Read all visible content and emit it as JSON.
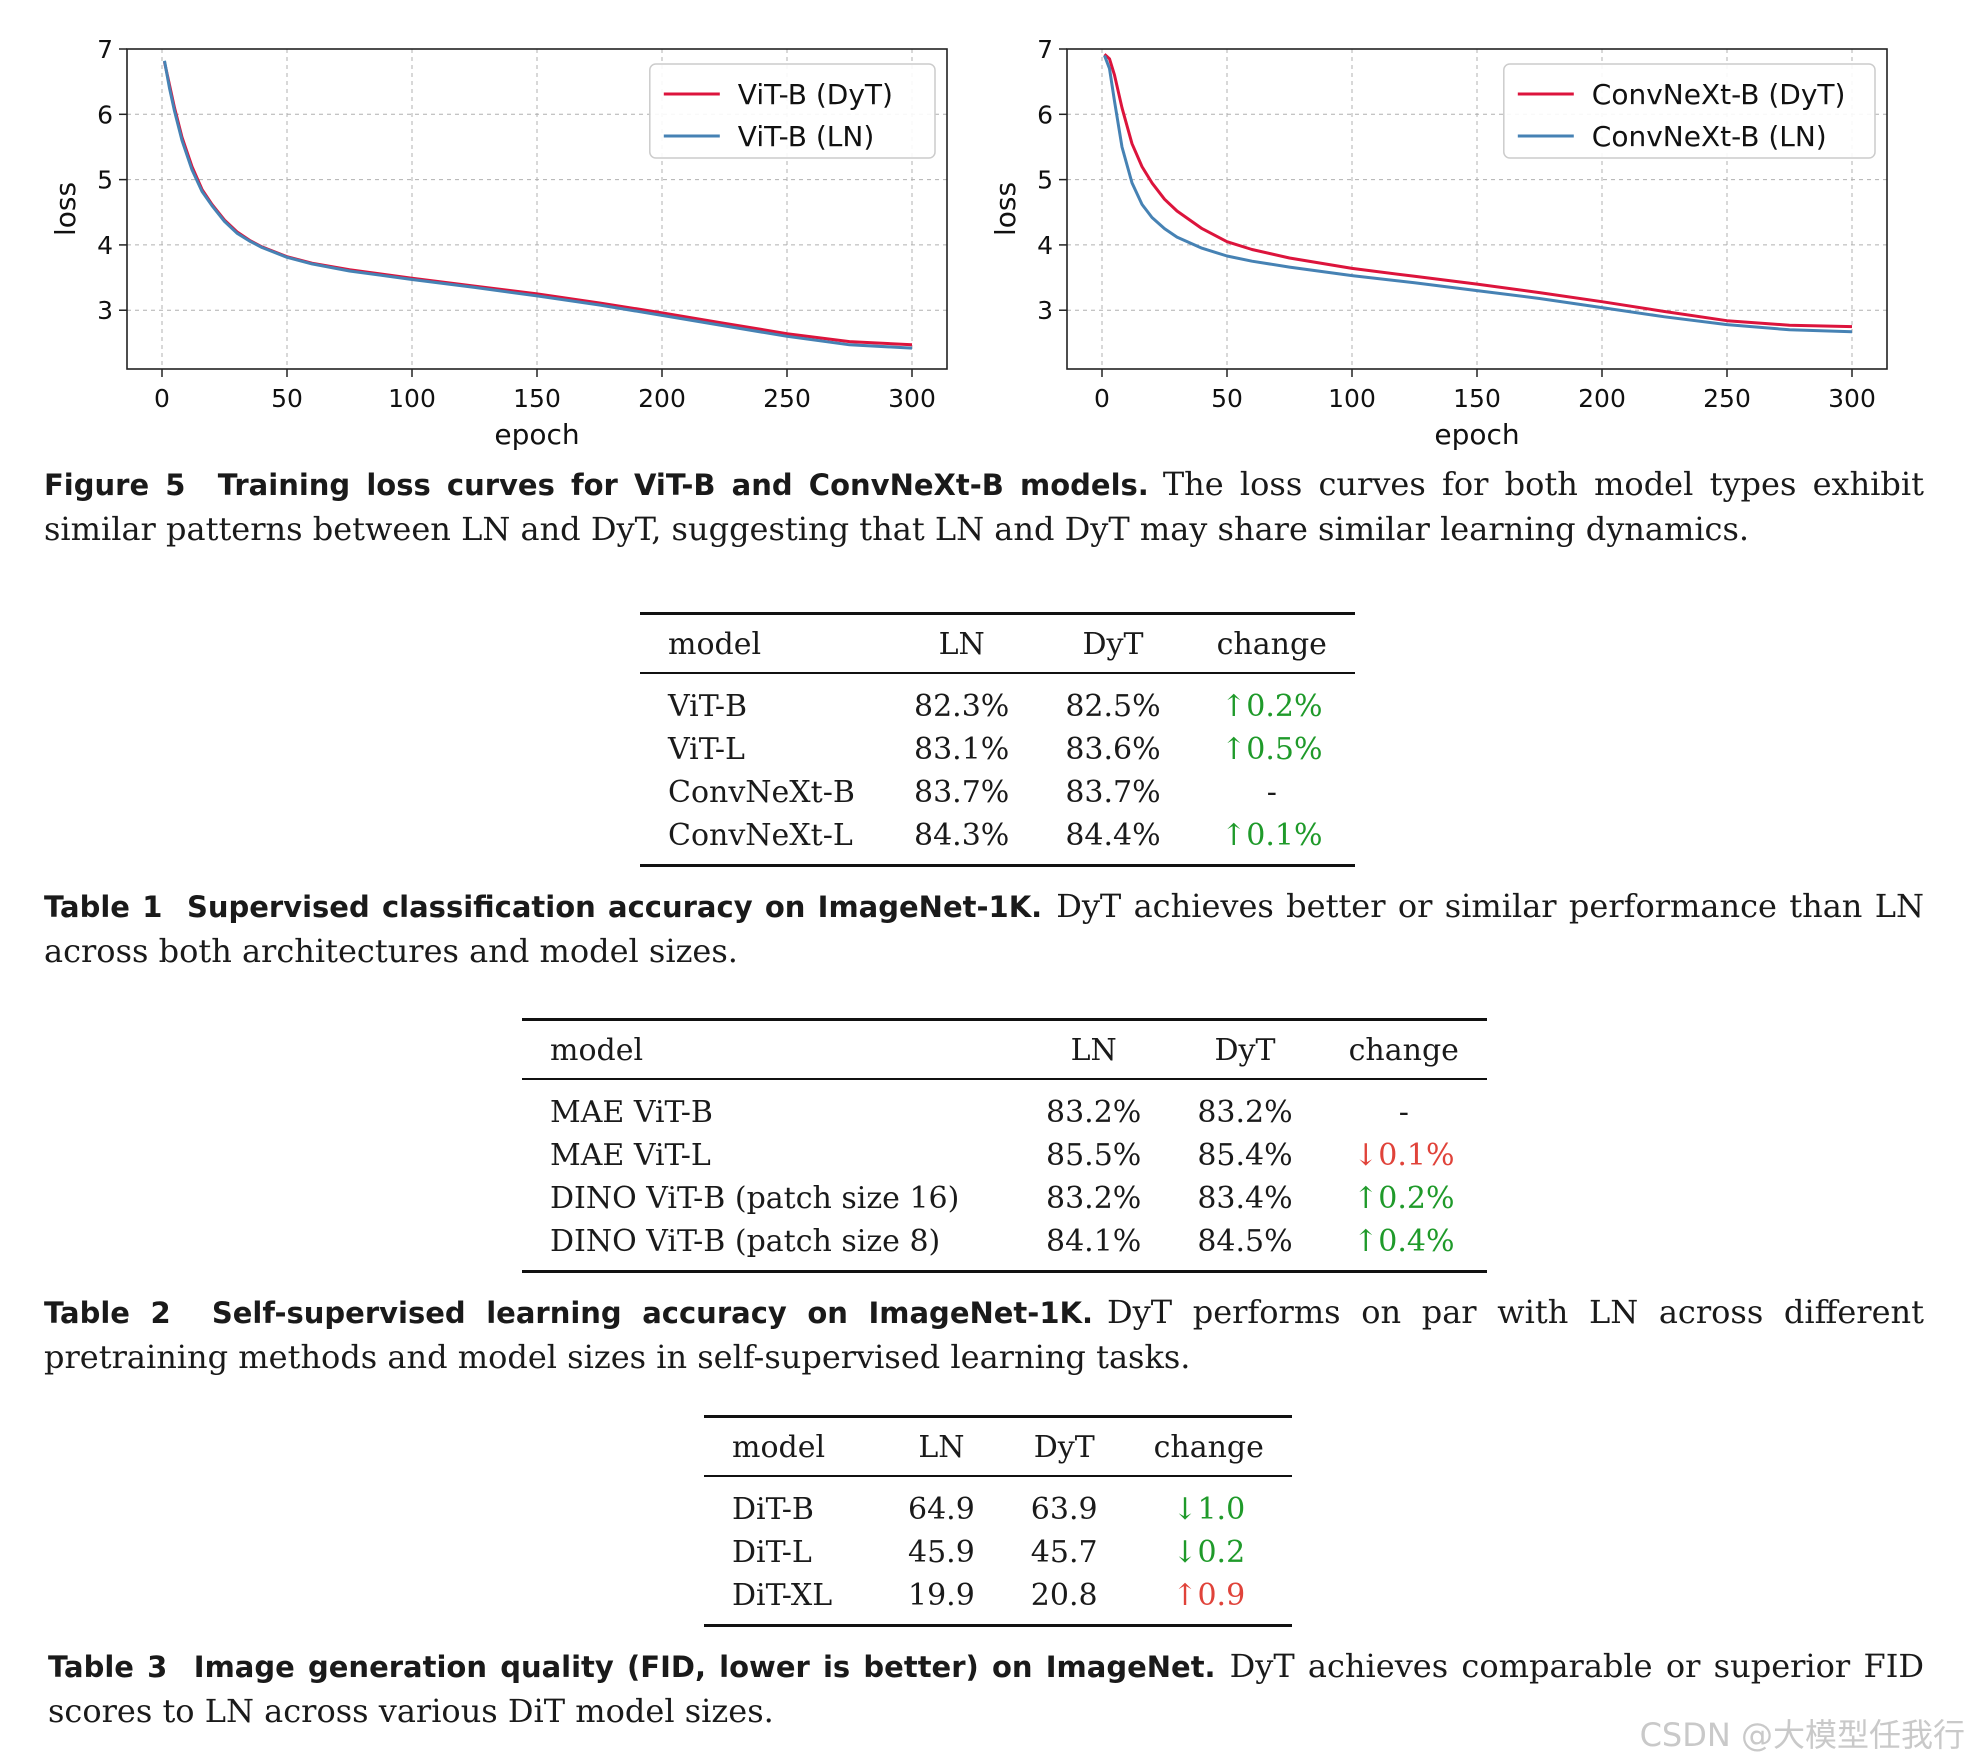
{
  "figure": {
    "label": "Figure 5",
    "title": "Training loss curves for ViT-B and ConvNeXt-B models.",
    "text": "The loss curves for both model types exhibit similar patterns between LN and DyT, suggesting that LN and DyT may share similar learning dynamics."
  },
  "chart_data": [
    {
      "type": "line",
      "title": "",
      "xlabel": "epoch",
      "ylabel": "loss",
      "xlim": [
        -14,
        314
      ],
      "ylim": [
        2.1,
        7.0
      ],
      "xticks": [
        "0",
        "50",
        "100",
        "150",
        "200",
        "250",
        "300"
      ],
      "yticks": [
        "3",
        "4",
        "5",
        "6",
        "7"
      ],
      "grid": true,
      "legend_position": "top-right",
      "series": [
        {
          "name": "ViT-B (DyT)",
          "color": "#dc143c",
          "x": [
            1,
            3,
            5,
            8,
            12,
            16,
            20,
            25,
            30,
            35,
            40,
            50,
            60,
            75,
            100,
            125,
            150,
            175,
            200,
            225,
            250,
            275,
            300
          ],
          "y": [
            6.8,
            6.45,
            6.1,
            5.65,
            5.2,
            4.85,
            4.62,
            4.38,
            4.2,
            4.07,
            3.97,
            3.82,
            3.72,
            3.62,
            3.49,
            3.37,
            3.25,
            3.11,
            2.96,
            2.8,
            2.64,
            2.52,
            2.47
          ]
        },
        {
          "name": "ViT-B (LN)",
          "color": "#4682b4",
          "x": [
            1,
            3,
            5,
            8,
            12,
            16,
            20,
            25,
            30,
            35,
            40,
            50,
            60,
            75,
            100,
            125,
            150,
            175,
            200,
            225,
            250,
            275,
            300
          ],
          "y": [
            6.82,
            6.4,
            6.05,
            5.6,
            5.15,
            4.82,
            4.6,
            4.36,
            4.18,
            4.06,
            3.96,
            3.81,
            3.71,
            3.6,
            3.47,
            3.35,
            3.22,
            3.08,
            2.92,
            2.76,
            2.6,
            2.47,
            2.42
          ]
        }
      ]
    },
    {
      "type": "line",
      "title": "",
      "xlabel": "epoch",
      "ylabel": "loss",
      "xlim": [
        -14,
        314
      ],
      "ylim": [
        2.1,
        7.0
      ],
      "xticks": [
        "0",
        "50",
        "100",
        "150",
        "200",
        "250",
        "300"
      ],
      "yticks": [
        "3",
        "4",
        "5",
        "6",
        "7"
      ],
      "grid": true,
      "legend_position": "top-right",
      "series": [
        {
          "name": "ConvNeXt-B (DyT)",
          "color": "#dc143c",
          "x": [
            1,
            3,
            5,
            8,
            12,
            16,
            20,
            25,
            30,
            40,
            50,
            60,
            75,
            100,
            125,
            150,
            175,
            200,
            225,
            250,
            275,
            300
          ],
          "y": [
            6.92,
            6.85,
            6.6,
            6.1,
            5.55,
            5.2,
            4.95,
            4.7,
            4.52,
            4.25,
            4.05,
            3.93,
            3.8,
            3.64,
            3.52,
            3.4,
            3.27,
            3.13,
            2.98,
            2.84,
            2.77,
            2.75
          ]
        },
        {
          "name": "ConvNeXt-B (LN)",
          "color": "#4682b4",
          "x": [
            1,
            3,
            5,
            8,
            12,
            16,
            20,
            25,
            30,
            40,
            50,
            60,
            75,
            100,
            125,
            150,
            175,
            200,
            225,
            250,
            275,
            300
          ],
          "y": [
            6.9,
            6.7,
            6.2,
            5.5,
            4.95,
            4.62,
            4.42,
            4.25,
            4.12,
            3.95,
            3.83,
            3.75,
            3.66,
            3.53,
            3.42,
            3.3,
            3.18,
            3.04,
            2.9,
            2.78,
            2.7,
            2.67
          ]
        }
      ]
    }
  ],
  "table1": {
    "headers": [
      "model",
      "LN",
      "DyT",
      "change"
    ],
    "rows": [
      [
        "ViT-B",
        "82.3%",
        "82.5%",
        "↑0.2%"
      ],
      [
        "ViT-L",
        "83.1%",
        "83.6%",
        "↑0.5%"
      ],
      [
        "ConvNeXt-B",
        "83.7%",
        "83.7%",
        "-"
      ],
      [
        "ConvNeXt-L",
        "84.3%",
        "84.4%",
        "↑0.1%"
      ]
    ],
    "change_status": [
      "good",
      "good",
      "neutral",
      "good"
    ],
    "caption_label": "Table 1",
    "caption_title": "Supervised classification accuracy on ImageNet-1K.",
    "caption_text": "DyT achieves better or similar performance than LN across both architectures and model sizes."
  },
  "table2": {
    "headers": [
      "model",
      "LN",
      "DyT",
      "change"
    ],
    "rows": [
      [
        "MAE ViT-B",
        "83.2%",
        "83.2%",
        "-"
      ],
      [
        "MAE ViT-L",
        "85.5%",
        "85.4%",
        "↓0.1%"
      ],
      [
        "DINO ViT-B (patch size 16)",
        "83.2%",
        "83.4%",
        "↑0.2%"
      ],
      [
        "DINO ViT-B (patch size 8)",
        "84.1%",
        "84.5%",
        "↑0.4%"
      ]
    ],
    "change_status": [
      "neutral",
      "bad",
      "good",
      "good"
    ],
    "caption_label": "Table 2",
    "caption_title": "Self-supervised learning accuracy on ImageNet-1K.",
    "caption_text": "DyT performs on par with LN across different pretraining methods and model sizes in self-supervised learning tasks."
  },
  "table3": {
    "headers": [
      "model",
      "LN",
      "DyT",
      "change"
    ],
    "rows": [
      [
        "DiT-B",
        "64.9",
        "63.9",
        "↓1.0"
      ],
      [
        "DiT-L",
        "45.9",
        "45.7",
        "↓0.2"
      ],
      [
        "DiT-XL",
        "19.9",
        "20.8",
        "↑0.9"
      ]
    ],
    "change_status": [
      "good",
      "good",
      "bad"
    ],
    "caption_label": "Table 3",
    "caption_title": "Image generation quality (FID, lower is better) on ImageNet.",
    "caption_text": "DyT achieves comparable or superior FID scores to LN across various DiT model sizes."
  },
  "watermark": "CSDN @大模型任我行",
  "colors": {
    "good": "#1f9a2a",
    "bad": "#e0433a",
    "dyt": "#dc143c",
    "ln": "#4682b4"
  }
}
